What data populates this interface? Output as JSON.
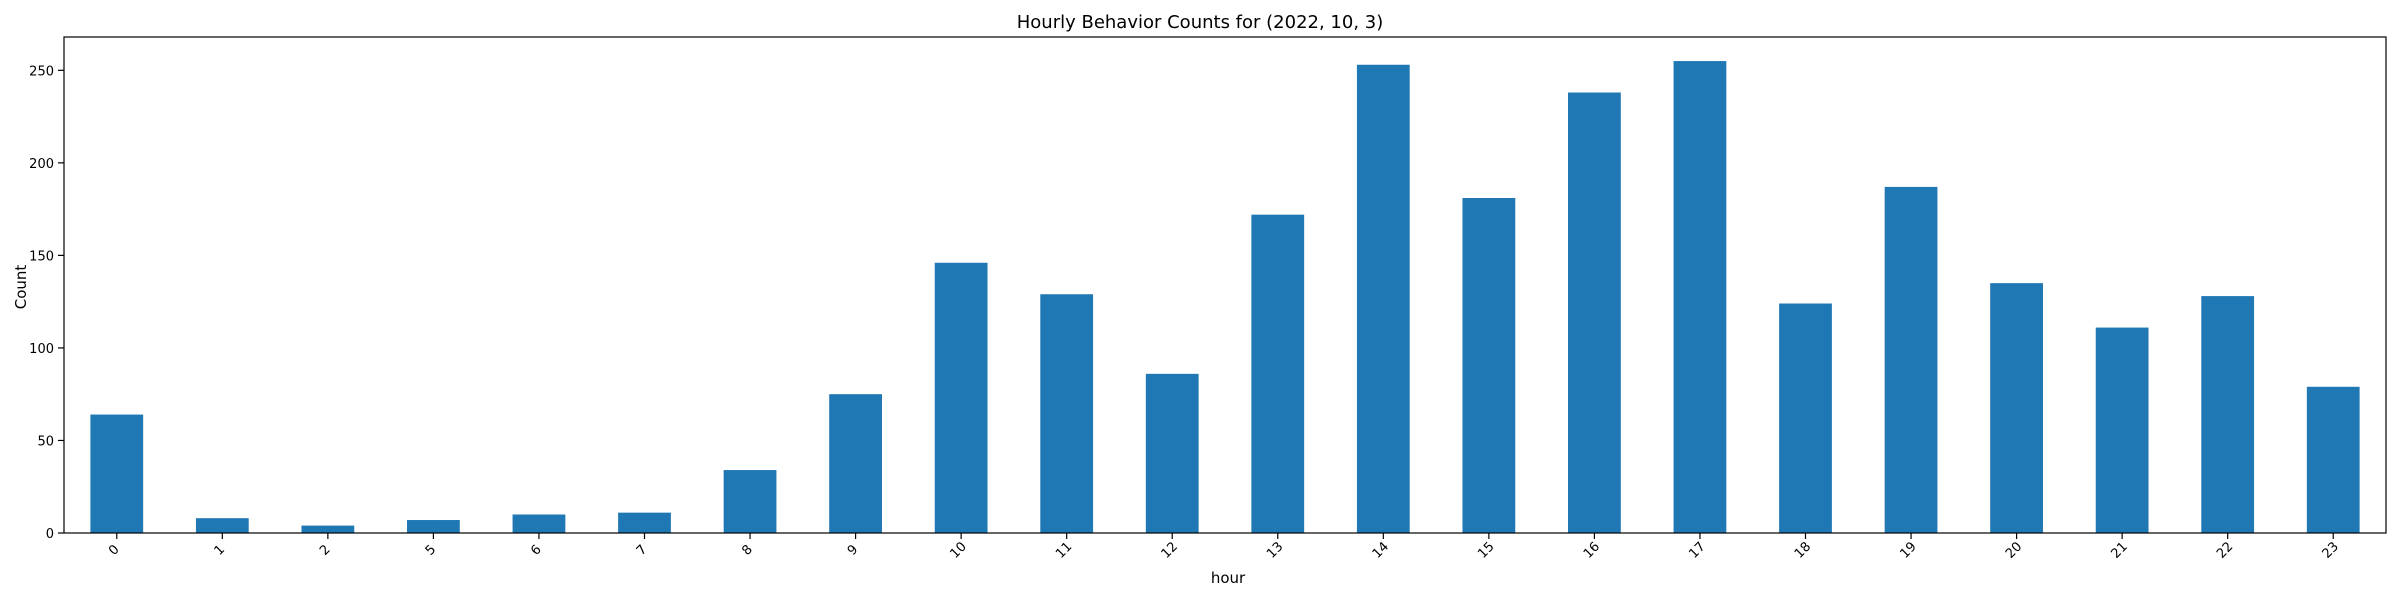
{
  "chart_data": {
    "type": "bar",
    "title": "Hourly Behavior Counts for (2022, 10, 3)",
    "xlabel": "hour",
    "ylabel": "Count",
    "categories": [
      "0",
      "1",
      "2",
      "5",
      "6",
      "7",
      "8",
      "9",
      "10",
      "11",
      "12",
      "13",
      "14",
      "15",
      "16",
      "17",
      "18",
      "19",
      "20",
      "21",
      "22",
      "23"
    ],
    "values": [
      64,
      8,
      4,
      7,
      10,
      11,
      34,
      75,
      146,
      129,
      86,
      172,
      253,
      181,
      238,
      255,
      124,
      187,
      135,
      111,
      128,
      79
    ],
    "ylim": [
      0,
      268
    ],
    "yticks": [
      0,
      50,
      100,
      150,
      200,
      250
    ],
    "grid": false,
    "legend": "none",
    "bar_color": "#1f77b4"
  }
}
